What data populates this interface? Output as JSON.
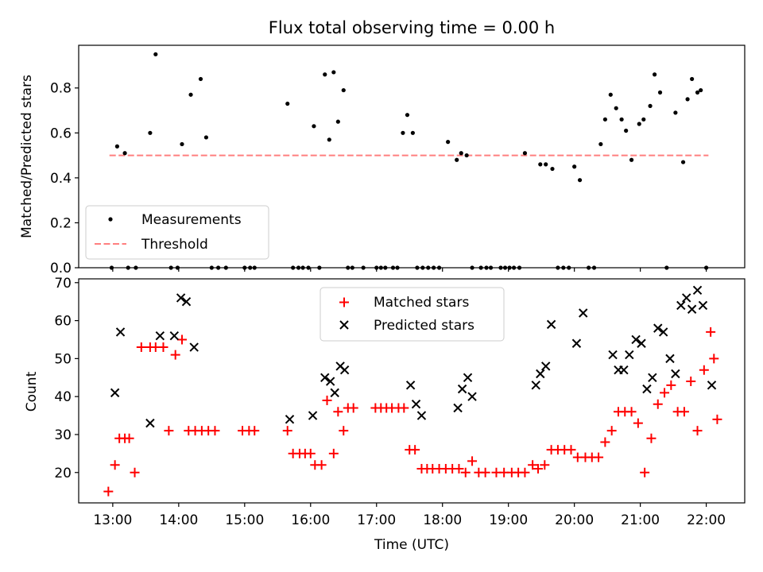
{
  "chart_data": [
    {
      "type": "scatter",
      "title": "Flux total observing time = 0.00 h",
      "ylabel": "Matched/Predicted stars",
      "xlabel": "",
      "ylim": [
        0,
        0.99
      ],
      "yticks": [
        "0.0",
        "0.2",
        "0.4",
        "0.6",
        "0.8"
      ],
      "yticks_values": [
        0.0,
        0.2,
        0.4,
        0.6,
        0.8
      ],
      "legend_position": "lower-left",
      "series": [
        {
          "name": "Measurements",
          "color": "#000000",
          "marker": "dot",
          "x": [
            "12:59",
            "13:04",
            "13:11",
            "13:14",
            "13:21",
            "13:34",
            "13:39",
            "13:53",
            "13:59",
            "14:03",
            "14:11",
            "14:20",
            "14:25",
            "14:30",
            "14:36",
            "14:43",
            "15:00",
            "15:05",
            "15:09",
            "15:39",
            "15:44",
            "15:49",
            "15:53",
            "15:58",
            "16:03",
            "16:08",
            "16:13",
            "16:17",
            "16:21",
            "16:25",
            "16:30",
            "16:34",
            "16:38",
            "16:48",
            "17:00",
            "17:04",
            "17:08",
            "17:15",
            "17:19",
            "17:24",
            "17:28",
            "17:33",
            "17:37",
            "17:42",
            "17:47",
            "17:52",
            "17:57",
            "18:05",
            "18:13",
            "18:17",
            "18:22",
            "18:27",
            "18:35",
            "18:40",
            "18:44",
            "18:53",
            "18:57",
            "19:01",
            "19:05",
            "19:10",
            "19:15",
            "19:29",
            "19:34",
            "19:40",
            "19:45",
            "19:50",
            "19:55",
            "20:00",
            "20:05",
            "20:13",
            "20:18",
            "20:24",
            "20:28",
            "20:33",
            "20:38",
            "20:43",
            "20:47",
            "20:52",
            "20:59",
            "21:03",
            "21:09",
            "21:13",
            "21:18",
            "21:24",
            "21:32",
            "21:39",
            "21:43",
            "21:47",
            "21:52",
            "21:55",
            "22:00"
          ],
          "y": [
            0.0,
            0.54,
            0.51,
            0.0,
            0.0,
            0.6,
            0.95,
            0.0,
            0.0,
            0.55,
            0.77,
            0.84,
            0.58,
            0.0,
            0.0,
            0.0,
            0.0,
            0.0,
            0.0,
            0.73,
            0.0,
            0.0,
            0.0,
            0.0,
            0.63,
            0.0,
            0.86,
            0.57,
            0.87,
            0.65,
            0.79,
            0.0,
            0.0,
            0.0,
            0.0,
            0.0,
            0.0,
            0.0,
            0.0,
            0.6,
            0.68,
            0.6,
            0.0,
            0.0,
            0.0,
            0.0,
            0.0,
            0.56,
            0.48,
            0.51,
            0.5,
            0.0,
            0.0,
            0.0,
            0.0,
            0.0,
            0.0,
            0.0,
            0.0,
            0.0,
            0.51,
            0.46,
            0.46,
            0.44,
            0.0,
            0.0,
            0.0,
            0.45,
            0.39,
            0.0,
            0.0,
            0.55,
            0.66,
            0.77,
            0.71,
            0.66,
            0.61,
            0.48,
            0.64,
            0.66,
            0.72,
            0.86,
            0.78,
            0.0,
            0.69,
            0.47,
            0.75,
            0.84,
            0.78,
            0.79,
            0.0
          ]
        },
        {
          "name": "Threshold",
          "color": "#ff7f7f",
          "style": "dashed",
          "x": [
            "12:57",
            "22:02"
          ],
          "y": [
            0.5,
            0.5
          ]
        }
      ]
    },
    {
      "type": "scatter",
      "title": "",
      "ylabel": "Count",
      "xlabel": "Time (UTC)",
      "ylim": [
        12,
        71
      ],
      "yticks": [
        "20",
        "30",
        "40",
        "50",
        "60",
        "70"
      ],
      "yticks_values": [
        20,
        30,
        40,
        50,
        60,
        70
      ],
      "xticks": [
        "13:00",
        "14:00",
        "15:00",
        "16:00",
        "17:00",
        "18:00",
        "19:00",
        "20:00",
        "21:00",
        "22:00"
      ],
      "xlim": [
        "12:29",
        "22:35"
      ],
      "legend_position": "top-center",
      "series": [
        {
          "name": "Matched stars",
          "color": "#ff0000",
          "marker": "plus",
          "x": [
            "12:56",
            "13:02",
            "13:06",
            "13:11",
            "13:15",
            "13:20",
            "13:26",
            "13:34",
            "13:39",
            "13:46",
            "13:51",
            "13:57",
            "14:03",
            "14:09",
            "14:15",
            "14:21",
            "14:27",
            "14:33",
            "14:58",
            "15:04",
            "15:09",
            "15:39",
            "15:44",
            "15:50",
            "15:55",
            "16:00",
            "16:04",
            "16:10",
            "16:15",
            "16:21",
            "16:25",
            "16:30",
            "16:34",
            "16:39",
            "16:59",
            "17:04",
            "17:09",
            "17:14",
            "17:20",
            "17:25",
            "17:30",
            "17:35",
            "17:41",
            "17:46",
            "17:51",
            "17:57",
            "18:03",
            "18:09",
            "18:15",
            "18:21",
            "18:27",
            "18:33",
            "18:39",
            "18:49",
            "18:56",
            "19:03",
            "19:09",
            "19:15",
            "19:22",
            "19:27",
            "19:33",
            "19:39",
            "19:45",
            "19:51",
            "19:57",
            "20:03",
            "20:10",
            "20:16",
            "20:22",
            "20:28",
            "20:34",
            "20:40",
            "20:46",
            "20:52",
            "20:58",
            "21:04",
            "21:10",
            "21:16",
            "21:22",
            "21:28",
            "21:34",
            "21:40",
            "21:46",
            "21:52",
            "21:58",
            "22:04",
            "22:07",
            "22:10"
          ],
          "y": [
            15,
            22,
            29,
            29,
            29,
            20,
            53,
            53,
            53,
            53,
            31,
            51,
            55,
            31,
            31,
            31,
            31,
            31,
            31,
            31,
            31,
            31,
            25,
            25,
            25,
            25,
            22,
            22,
            39,
            25,
            36,
            31,
            37,
            37,
            37,
            37,
            37,
            37,
            37,
            37,
            26,
            26,
            21,
            21,
            21,
            21,
            21,
            21,
            21,
            20,
            23,
            20,
            20,
            20,
            20,
            20,
            20,
            20,
            22,
            21,
            22,
            26,
            26,
            26,
            26,
            24,
            24,
            24,
            24,
            28,
            31,
            36,
            36,
            36,
            33,
            20,
            29,
            38,
            41,
            43,
            36,
            36,
            44,
            31,
            47,
            57,
            50,
            34
          ]
        },
        {
          "name": "Predicted stars",
          "color": "#000000",
          "marker": "x",
          "x": [
            "13:02",
            "13:07",
            "13:34",
            "13:43",
            "13:56",
            "14:02",
            "14:07",
            "14:14",
            "15:41",
            "16:02",
            "16:13",
            "16:18",
            "16:22",
            "16:27",
            "16:31",
            "17:31",
            "17:36",
            "17:41",
            "18:14",
            "18:18",
            "18:23",
            "18:27",
            "19:25",
            "19:29",
            "19:34",
            "19:39",
            "20:02",
            "20:08",
            "20:35",
            "20:40",
            "20:45",
            "20:50",
            "20:56",
            "21:01",
            "21:06",
            "21:11",
            "21:16",
            "21:21",
            "21:27",
            "21:32",
            "21:37",
            "21:42",
            "21:47",
            "21:52",
            "21:57",
            "22:05"
          ],
          "y": [
            41,
            57,
            33,
            56,
            56,
            66,
            65,
            53,
            34,
            35,
            45,
            44,
            41,
            48,
            47,
            43,
            38,
            35,
            37,
            42,
            45,
            40,
            43,
            46,
            48,
            59,
            54,
            62,
            51,
            47,
            47,
            51,
            55,
            54,
            42,
            45,
            58,
            57,
            50,
            46,
            64,
            66,
            63,
            68,
            64,
            43
          ]
        }
      ]
    }
  ]
}
